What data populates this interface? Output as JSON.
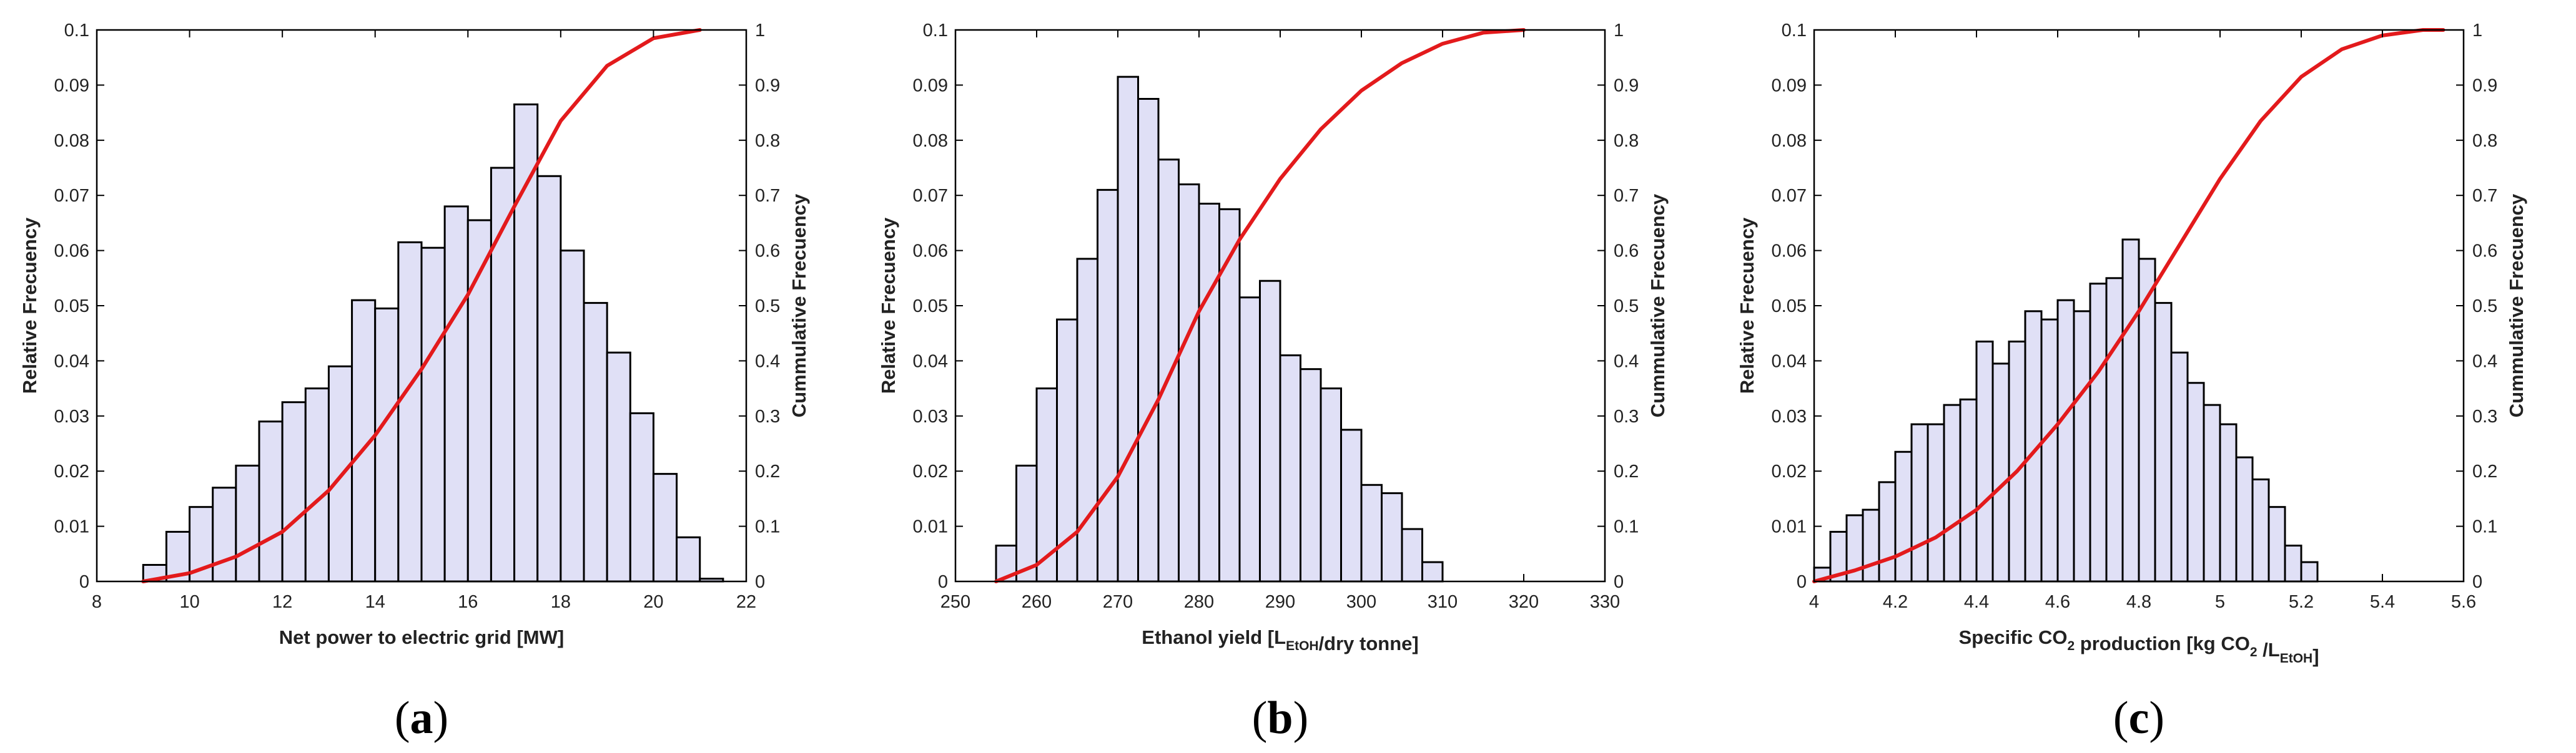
{
  "figure": {
    "panels": [
      "a",
      "b",
      "c"
    ]
  },
  "colors": {
    "bar_fill": "#e0e0f6",
    "bar_edge": "#000000",
    "cumulative_line": "#e31a1c",
    "axis": "#000000",
    "text": "#222222"
  },
  "chart_data": [
    {
      "type": "bar",
      "subtype": "histogram-with-cumulative-line",
      "panel_label": "a",
      "xlabel": "Net power to electric grid [MW]",
      "ylabel": "Relative Frecuency",
      "ylabel_right": "Cummulative Frecuency",
      "xlim": [
        8,
        22
      ],
      "ylim": [
        0,
        0.1
      ],
      "ylim_right": [
        0,
        1
      ],
      "xticks": [
        8,
        10,
        12,
        14,
        16,
        18,
        20,
        22
      ],
      "yticks": [
        0,
        0.01,
        0.02,
        0.03,
        0.04,
        0.05,
        0.06,
        0.07,
        0.08,
        0.09,
        0.1
      ],
      "yticks_right": [
        0,
        0.1,
        0.2,
        0.3,
        0.4,
        0.5,
        0.6,
        0.7,
        0.8,
        0.9,
        1
      ],
      "grid": false,
      "bin_start": 9.0,
      "bin_width": 0.5,
      "values": [
        0.003,
        0.009,
        0.0135,
        0.017,
        0.021,
        0.029,
        0.0325,
        0.035,
        0.039,
        0.051,
        0.0495,
        0.0615,
        0.0605,
        0.068,
        0.0655,
        0.075,
        0.0865,
        0.0735,
        0.06,
        0.0505,
        0.0415,
        0.0305,
        0.0195,
        0.008,
        0.0005
      ],
      "cumulative": {
        "x": [
          9.0,
          10.0,
          11.0,
          12.0,
          13.0,
          14.0,
          15.0,
          16.0,
          17.0,
          18.0,
          19.0,
          20.0,
          21.0
        ],
        "y": [
          0.0,
          0.015,
          0.045,
          0.09,
          0.165,
          0.265,
          0.385,
          0.52,
          0.68,
          0.835,
          0.935,
          0.985,
          1.0
        ]
      }
    },
    {
      "type": "bar",
      "subtype": "histogram-with-cumulative-line",
      "panel_label": "b",
      "xlabel": "Ethanol yield [L",
      "xlabel_sub": "EtOH",
      "xlabel_tail": "/dry tonne]",
      "ylabel": "Relative Frecuency",
      "ylabel_right": "Cummulative Frecuency",
      "xlim": [
        250,
        330
      ],
      "ylim": [
        0,
        0.1
      ],
      "ylim_right": [
        0,
        1
      ],
      "xticks": [
        250,
        260,
        270,
        280,
        290,
        300,
        310,
        320,
        330
      ],
      "yticks": [
        0,
        0.01,
        0.02,
        0.03,
        0.04,
        0.05,
        0.06,
        0.07,
        0.08,
        0.09,
        0.1
      ],
      "yticks_right": [
        0,
        0.1,
        0.2,
        0.3,
        0.4,
        0.5,
        0.6,
        0.7,
        0.8,
        0.9,
        1
      ],
      "grid": false,
      "bin_start": 255,
      "bin_width": 2.5,
      "values": [
        0.0065,
        0.021,
        0.035,
        0.0475,
        0.0585,
        0.071,
        0.0915,
        0.0875,
        0.0765,
        0.072,
        0.0685,
        0.0675,
        0.0515,
        0.0545,
        0.041,
        0.0385,
        0.035,
        0.0275,
        0.0175,
        0.016,
        0.0095,
        0.0035
      ],
      "cumulative": {
        "x": [
          255,
          260,
          265,
          270,
          275,
          280,
          285,
          290,
          295,
          300,
          305,
          310,
          315,
          320
        ],
        "y": [
          0.0,
          0.03,
          0.09,
          0.19,
          0.33,
          0.49,
          0.62,
          0.73,
          0.82,
          0.89,
          0.94,
          0.975,
          0.995,
          1.0
        ]
      }
    },
    {
      "type": "bar",
      "subtype": "histogram-with-cumulative-line",
      "panel_label": "c",
      "xlabel": "Specific CO",
      "xlabel_sub": "2",
      "xlabel_tail": " production [kg CO",
      "xlabel_sub2": "2",
      "xlabel_tail2": " /L",
      "xlabel_sub3": "EtOH",
      "xlabel_tail3": "]",
      "ylabel": "Relative Frecuency",
      "ylabel_right": "Cummulative Frecuency",
      "xlim": [
        4,
        5.6
      ],
      "ylim": [
        0,
        0.1
      ],
      "ylim_right": [
        0,
        1
      ],
      "xticks": [
        4,
        4.2,
        4.4,
        4.6,
        4.8,
        5,
        5.2,
        5.4,
        5.6
      ],
      "yticks": [
        0,
        0.01,
        0.02,
        0.03,
        0.04,
        0.05,
        0.06,
        0.07,
        0.08,
        0.09,
        0.1
      ],
      "yticks_right": [
        0,
        0.1,
        0.2,
        0.3,
        0.4,
        0.5,
        0.6,
        0.7,
        0.8,
        0.9,
        1
      ],
      "grid": false,
      "bin_start": 4.0,
      "bin_width": 0.04,
      "values": [
        0.0025,
        0.009,
        0.012,
        0.013,
        0.018,
        0.0235,
        0.0285,
        0.0285,
        0.032,
        0.033,
        0.0435,
        0.0395,
        0.0435,
        0.049,
        0.0475,
        0.051,
        0.049,
        0.054,
        0.055,
        0.062,
        0.0585,
        0.0505,
        0.0415,
        0.036,
        0.032,
        0.0285,
        0.0225,
        0.0185,
        0.0135,
        0.0065,
        0.0035
      ],
      "cumulative": {
        "x": [
          4.0,
          4.1,
          4.2,
          4.3,
          4.4,
          4.5,
          4.6,
          4.7,
          4.8,
          4.9,
          5.0,
          5.1,
          5.2,
          5.3,
          5.4,
          5.5,
          5.55
        ],
        "y": [
          0.0,
          0.02,
          0.045,
          0.08,
          0.13,
          0.2,
          0.285,
          0.38,
          0.49,
          0.61,
          0.73,
          0.835,
          0.915,
          0.965,
          0.99,
          1.0,
          1.0
        ]
      }
    }
  ]
}
